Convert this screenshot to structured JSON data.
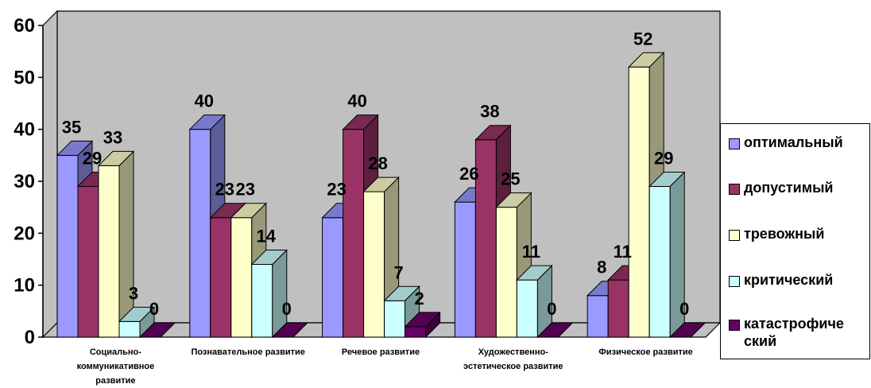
{
  "chart_data": {
    "type": "bar",
    "title": "",
    "xlabel": "",
    "ylabel": "",
    "ylim": [
      0,
      60
    ],
    "y_ticks": [
      "0",
      "10",
      "20",
      "30",
      "40",
      "50",
      "60"
    ],
    "grid": false,
    "legend_position": "right",
    "categories": [
      "Социально-коммуникативное развитие",
      "Познавательное развитие",
      "Речевое развитие",
      "Художественно-эстетическое развитие",
      "Физическое развитие"
    ],
    "series": [
      {
        "name": "оптимальный",
        "values": [
          35,
          40,
          23,
          26,
          8
        ],
        "color": "#9999FF"
      },
      {
        "name": "допустимый",
        "values": [
          29,
          23,
          40,
          38,
          11
        ],
        "color": "#993366"
      },
      {
        "name": "тревожный",
        "values": [
          33,
          23,
          28,
          25,
          52
        ],
        "color": "#FFFFCC"
      },
      {
        "name": "критический",
        "values": [
          3,
          14,
          7,
          11,
          29
        ],
        "color": "#CCFFFF"
      },
      {
        "name": "катастрофический",
        "values": [
          0,
          0,
          2,
          0,
          0
        ],
        "color": "#660066"
      }
    ],
    "category_label_lines": [
      [
        "Социально-",
        "коммуникативное",
        "развитие"
      ],
      [
        "Познавательное развитие"
      ],
      [
        "Речевое развитие"
      ],
      [
        "Художественно-",
        "эстетическое развитие"
      ],
      [
        "Физическое развитие"
      ]
    ],
    "legend_label_lines": [
      [
        "оптимальный"
      ],
      [
        "допустимый"
      ],
      [
        "тревожный"
      ],
      [
        "критический"
      ],
      [
        "катастрофиче",
        "ский"
      ]
    ],
    "colors": {
      "wall": "#C0C0C0",
      "floor": "#C0C0C0"
    }
  }
}
